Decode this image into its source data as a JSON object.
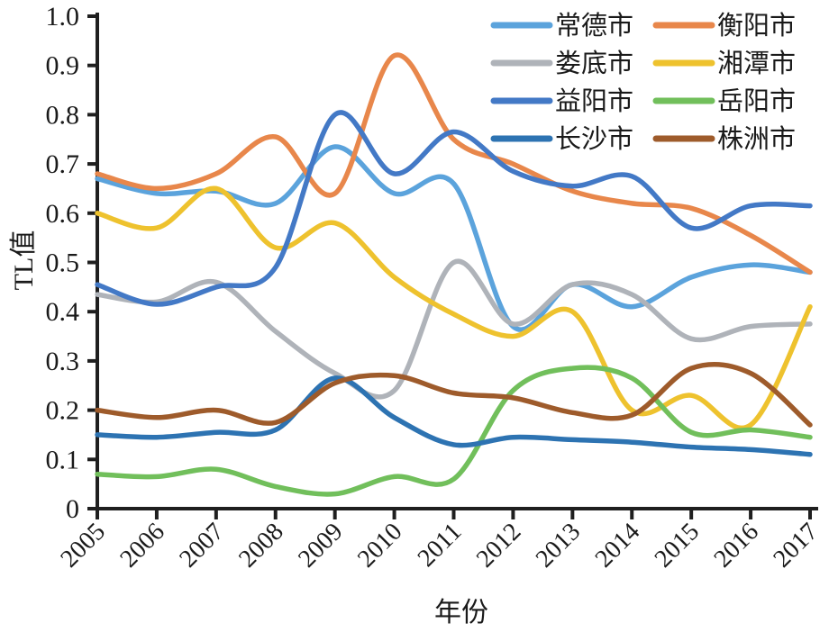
{
  "chart_data": {
    "type": "line",
    "title": "",
    "xlabel": "年份",
    "ylabel": "TL值",
    "x": [
      2005,
      2006,
      2007,
      2008,
      2009,
      2010,
      2011,
      2012,
      2013,
      2014,
      2015,
      2016,
      2017
    ],
    "xlim": [
      2005,
      2017
    ],
    "ylim": [
      0,
      1.0
    ],
    "ytick_step": 0.1,
    "ytick_labels": [
      "0",
      "0.1",
      "0.2",
      "0.3",
      "0.4",
      "0.5",
      "0.6",
      "0.7",
      "0.8",
      "0.9",
      "1.0"
    ],
    "grid": false,
    "legend_position": "top-right",
    "legend_columns": 2,
    "axis_color": "#1f1f1f",
    "text_color": "#1a1a1a",
    "series": [
      {
        "id": "changde",
        "name": "常德市",
        "color": "#5BA3DC",
        "values": [
          0.67,
          0.64,
          0.645,
          0.62,
          0.735,
          0.64,
          0.66,
          0.37,
          0.455,
          0.41,
          0.47,
          0.495,
          0.48
        ]
      },
      {
        "id": "hengyang",
        "name": "衡阳市",
        "color": "#E8874B",
        "values": [
          0.68,
          0.65,
          0.68,
          0.755,
          0.64,
          0.92,
          0.75,
          0.7,
          0.645,
          0.62,
          0.61,
          0.555,
          0.48
        ]
      },
      {
        "id": "loudi",
        "name": "娄底市",
        "color": "#AFB3B9",
        "values": [
          0.435,
          0.42,
          0.46,
          0.36,
          0.275,
          0.24,
          0.5,
          0.375,
          0.455,
          0.435,
          0.345,
          0.37,
          0.375
        ]
      },
      {
        "id": "xiangtan",
        "name": "湘潭市",
        "color": "#EEC22E",
        "values": [
          0.6,
          0.57,
          0.65,
          0.53,
          0.58,
          0.47,
          0.395,
          0.35,
          0.4,
          0.2,
          0.23,
          0.17,
          0.41
        ]
      },
      {
        "id": "yiyang",
        "name": "益阳市",
        "color": "#4379C6",
        "values": [
          0.455,
          0.415,
          0.45,
          0.49,
          0.8,
          0.68,
          0.765,
          0.685,
          0.655,
          0.675,
          0.57,
          0.615,
          0.615
        ]
      },
      {
        "id": "yueyang",
        "name": "岳阳市",
        "color": "#71BF5B",
        "values": [
          0.07,
          0.065,
          0.08,
          0.045,
          0.03,
          0.065,
          0.06,
          0.24,
          0.285,
          0.265,
          0.155,
          0.16,
          0.145
        ]
      },
      {
        "id": "changsha",
        "name": "长沙市",
        "color": "#2D73B2",
        "values": [
          0.15,
          0.145,
          0.155,
          0.16,
          0.265,
          0.185,
          0.13,
          0.145,
          0.14,
          0.135,
          0.125,
          0.12,
          0.11
        ]
      },
      {
        "id": "zhuzhou",
        "name": "株洲市",
        "color": "#9E5B2B",
        "values": [
          0.2,
          0.185,
          0.2,
          0.175,
          0.255,
          0.27,
          0.235,
          0.225,
          0.195,
          0.19,
          0.285,
          0.275,
          0.17
        ]
      }
    ]
  }
}
